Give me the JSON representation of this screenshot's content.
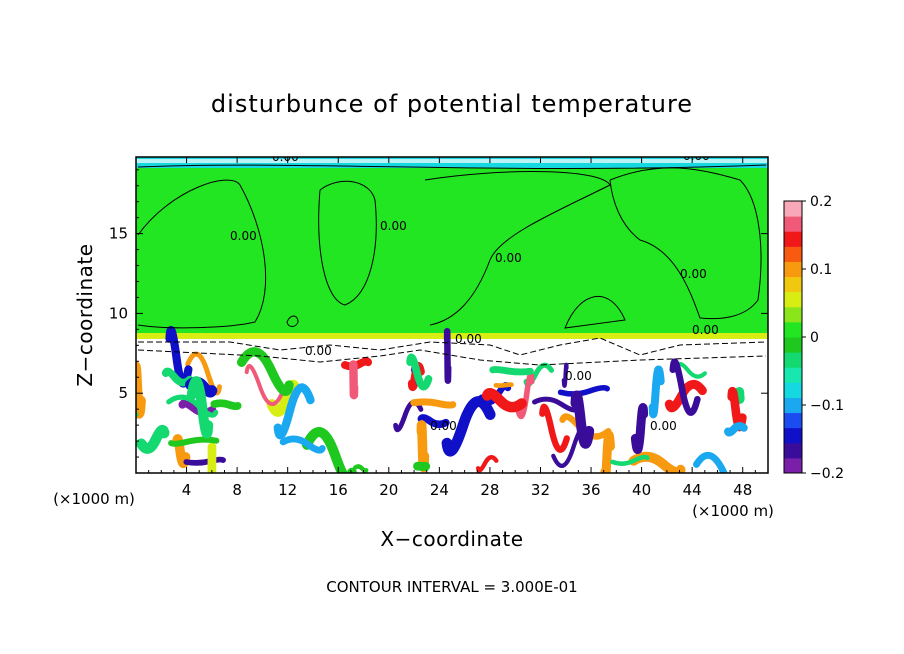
{
  "chart_data": {
    "type": "heatmap",
    "title": "disturbunce of potential temperature",
    "xlabel": "X−coordinate",
    "ylabel": "Z−coordinate",
    "x_unit": "(×1000 m)",
    "x_unit_left": "(×1000 m)",
    "xlim": [
      0,
      50
    ],
    "ylim": [
      0,
      19.8
    ],
    "x_ticks": [
      4,
      8,
      12,
      16,
      20,
      24,
      28,
      32,
      36,
      40,
      44,
      48
    ],
    "y_ticks": [
      5,
      10,
      15
    ],
    "colorbar": {
      "range": [
        -0.2,
        0.2
      ],
      "tick_labels": [
        "0.2",
        "0.1",
        "0",
        "−0.1",
        "−0.2"
      ],
      "tick_values": [
        0.2,
        0.1,
        0,
        -0.1,
        -0.2
      ],
      "colors": [
        "#7a1fa8",
        "#3a0c9a",
        "#1010c8",
        "#1a4cf0",
        "#1aa8f0",
        "#16d8e0",
        "#18e8b0",
        "#14d870",
        "#1ec81e",
        "#22e622",
        "#8ae61a",
        "#d8ee12",
        "#f0c810",
        "#f89a10",
        "#f85a10",
        "#f01818",
        "#f05a78",
        "#f8a8b8"
      ]
    },
    "contour_labels": [
      "0.00",
      "0.00",
      "0.00",
      "0.00",
      "0.00",
      "0.00",
      "0.00",
      "0.00",
      "0.00",
      "0.00",
      "0.00",
      "0.00"
    ],
    "contour_interval_text": "CONTOUR INTERVAL = 3.000E-01",
    "upper_region_value": 0.0,
    "grid": false
  }
}
